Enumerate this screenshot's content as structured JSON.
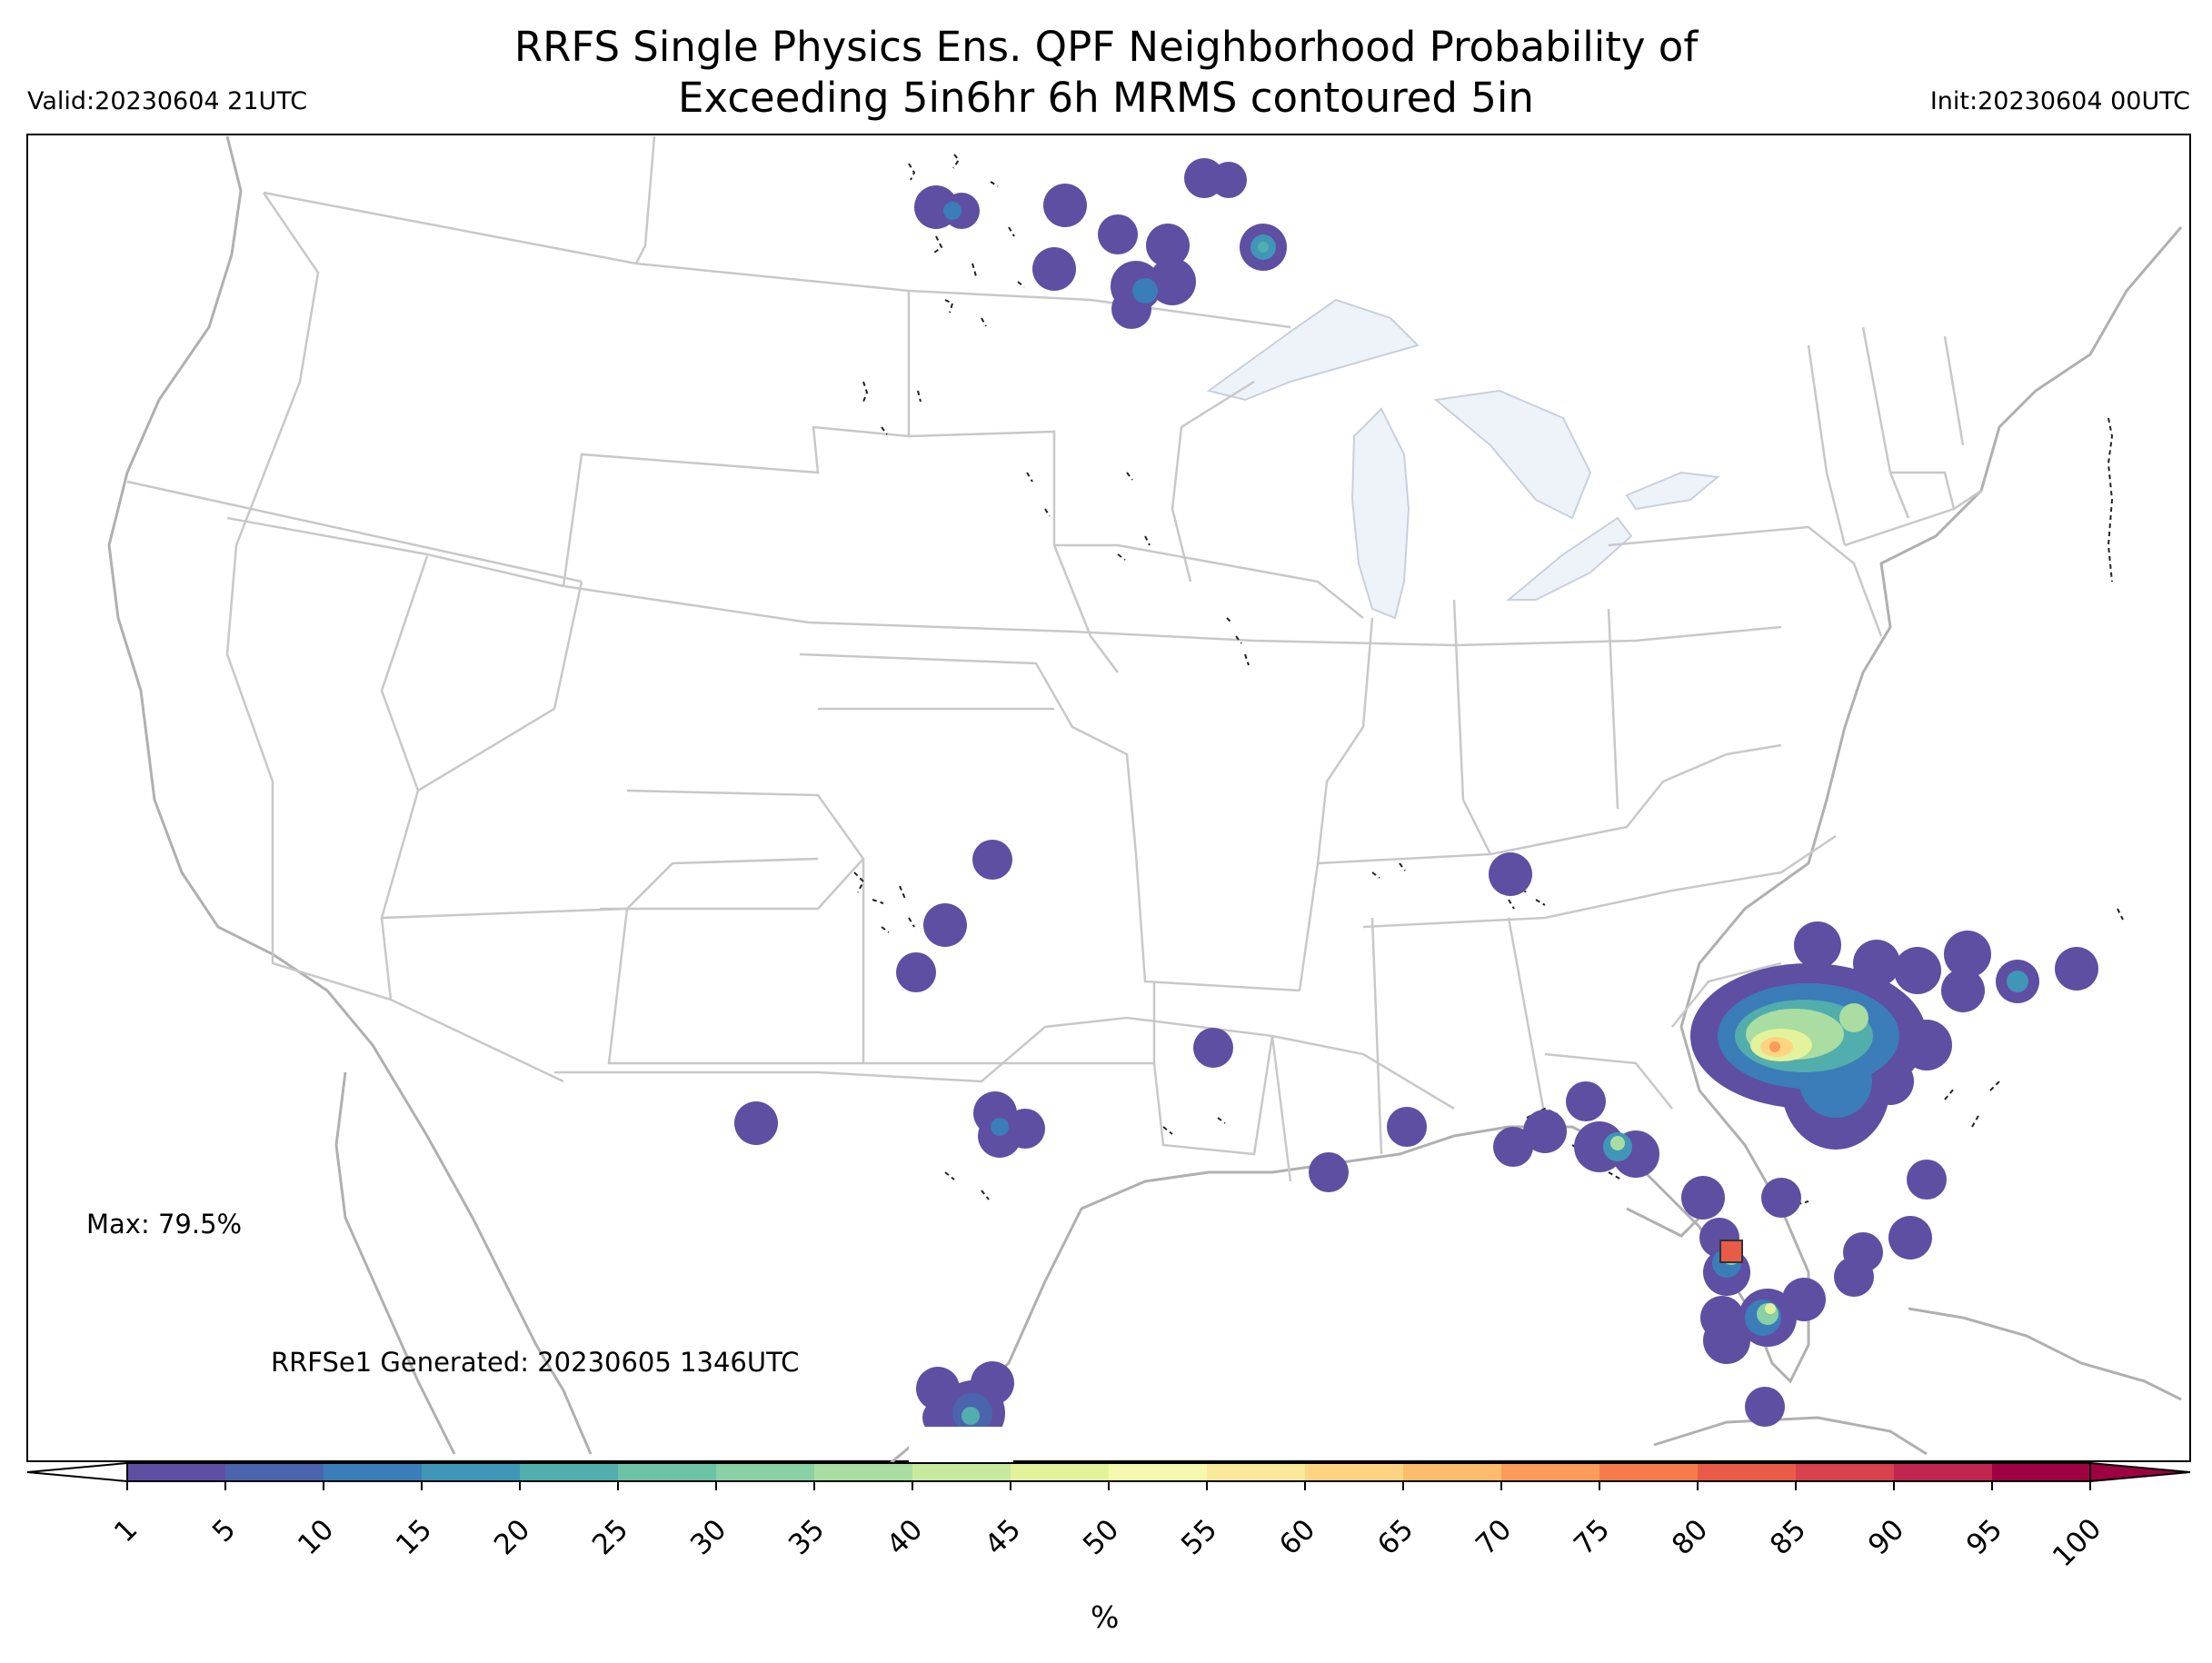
{
  "title_line1": "RRFS Single Physics Ens. QPF Neighborhood Probability of",
  "title_line2": "Exceeding 5in6hr 6h MRMS contoured 5in",
  "valid": "Valid:20230604 21UTC",
  "init": "Init:20230604 00UTC",
  "max_label": "Max: 79.5%",
  "generated": "RRFSe1 Generated: 20230605 1346UTC",
  "colorbar": {
    "unit": "%",
    "ticks": [
      "1",
      "5",
      "10",
      "15",
      "20",
      "25",
      "30",
      "35",
      "40",
      "45",
      "50",
      "55",
      "60",
      "65",
      "70",
      "75",
      "80",
      "85",
      "90",
      "95",
      "100"
    ],
    "colors": [
      "#5e4fa2",
      "#4a64ad",
      "#3a7db8",
      "#3f96b7",
      "#52aeac",
      "#6dc2a5",
      "#89d0a4",
      "#a9dda2",
      "#c8e99e",
      "#e2f39c",
      "#f5f9ae",
      "#fbe99b",
      "#fdd582",
      "#fdbc6c",
      "#fb9c5a",
      "#f57b4a",
      "#e85c47",
      "#d7424c",
      "#c0264f",
      "#9e0142"
    ]
  },
  "map": {
    "land_color": "#ffffff",
    "water_color": "#eef3fa",
    "state_line_color": "#c8c8c8",
    "coast_line_color": "#b0b0b0"
  }
}
